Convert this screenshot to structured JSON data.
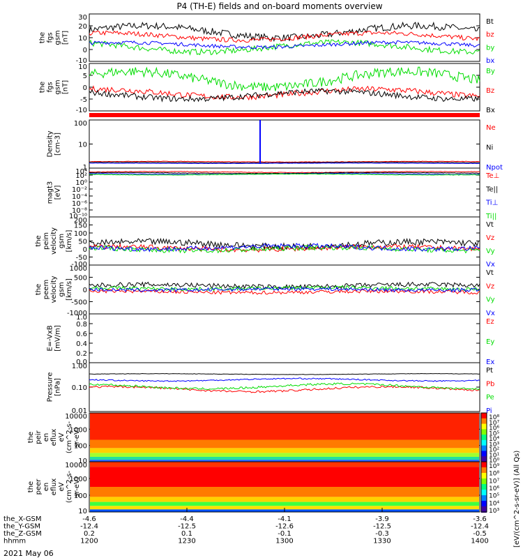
{
  "title": "P4 (TH-E) fields and on-board moments overview",
  "date_label": "2021 May 06",
  "colorbar_label": "[eV/(cm^2-s-sr-eV)] (All Qs)",
  "chart_data": [
    {
      "type": "line",
      "id": "fgs_gsm",
      "ylabel": [
        "the",
        "fgs",
        "gsm",
        "[nT]"
      ],
      "ylim": [
        -10,
        30
      ],
      "yticks": [
        "30",
        "20",
        "10",
        "0",
        "-10"
      ],
      "legend": [
        {
          "name": "Bt",
          "color": "#000000"
        },
        {
          "name": "bz",
          "color": "#ff0000"
        },
        {
          "name": "by",
          "color": "#00dd00"
        },
        {
          "name": "bx",
          "color": "#0000ff"
        }
      ]
    },
    {
      "type": "line",
      "id": "fgs_gsm_dsl",
      "ylabel": [
        "the",
        "fgs",
        "gsm",
        "[nT]"
      ],
      "ylim": [
        -12,
        12
      ],
      "yticks": [
        "10",
        "5",
        "0",
        "-5",
        "-10"
      ],
      "legend": [
        {
          "name": "By",
          "color": "#00dd00"
        },
        {
          "name": "Bz",
          "color": "#ff0000"
        },
        {
          "name": "Bx",
          "color": "#000000"
        }
      ]
    },
    {
      "type": "line",
      "id": "density",
      "ylabel": [
        "Density",
        "[cm-3]"
      ],
      "yscale": "log",
      "yticks": [
        "100",
        "10",
        "1"
      ],
      "legend": [
        {
          "name": "Ne",
          "color": "#ff0000"
        },
        {
          "name": "Ni",
          "color": "#000000"
        },
        {
          "name": "Npot",
          "color": "#0000ff"
        }
      ]
    },
    {
      "type": "line",
      "id": "magt3",
      "ylabel": [
        "magt3",
        "[eV]"
      ],
      "yscale": "log",
      "yticks": [
        "10⁴",
        "10²",
        "10⁰",
        "10⁻²",
        "10⁻⁴",
        "10⁻⁶",
        "10⁻⁸",
        "10⁻¹⁰"
      ],
      "legend": [
        {
          "name": "Te⊥",
          "color": "#ff0000"
        },
        {
          "name": "Te||",
          "color": "#000000"
        },
        {
          "name": "Ti⊥",
          "color": "#0000ff"
        },
        {
          "name": "Ti||",
          "color": "#00dd00"
        }
      ]
    },
    {
      "type": "line",
      "id": "peim_velocity",
      "ylabel": [
        "the",
        "peim",
        "velocity",
        "gsm",
        "[km/s]"
      ],
      "ylim": [
        -100,
        200
      ],
      "yticks": [
        "200",
        "150",
        "100",
        "50",
        "0",
        "-50",
        "-100"
      ],
      "legend": [
        {
          "name": "Vt",
          "color": "#000000"
        },
        {
          "name": "Vz",
          "color": "#ff0000"
        },
        {
          "name": "Vy",
          "color": "#00dd00"
        },
        {
          "name": "Vx",
          "color": "#0000ff"
        }
      ]
    },
    {
      "type": "line",
      "id": "peem_velocity",
      "ylabel": [
        "the",
        "peem",
        "velocity",
        "gsm",
        "[km/s]"
      ],
      "ylim": [
        -1000,
        1000
      ],
      "yticks": [
        "1000",
        "500",
        "0",
        "-500",
        "-1000"
      ],
      "legend": [
        {
          "name": "Vt",
          "color": "#000000"
        },
        {
          "name": "Vz",
          "color": "#ff0000"
        },
        {
          "name": "Vy",
          "color": "#00dd00"
        },
        {
          "name": "Vx",
          "color": "#0000ff"
        }
      ]
    },
    {
      "type": "line",
      "id": "efield",
      "ylabel": [
        "E=-VxB",
        "[mV/m]"
      ],
      "ylim": [
        0,
        1
      ],
      "yticks": [
        "1.0",
        "0.8",
        "0.6",
        "0.4",
        "0.2",
        "0.0"
      ],
      "legend": [
        {
          "name": "Ez",
          "color": "#ff0000"
        },
        {
          "name": "Ey",
          "color": "#00dd00"
        },
        {
          "name": "Ex",
          "color": "#0000ff"
        }
      ]
    },
    {
      "type": "line",
      "id": "pressure",
      "ylabel": [
        "Pressure",
        "[nPa]"
      ],
      "yscale": "log",
      "yticks": [
        "1.00",
        "0.10",
        "0.01"
      ],
      "legend": [
        {
          "name": "Pt",
          "color": "#000000"
        },
        {
          "name": "Pb",
          "color": "#ff0000"
        },
        {
          "name": "Pe",
          "color": "#00dd00"
        },
        {
          "name": "Pi",
          "color": "#0000ff"
        }
      ]
    },
    {
      "type": "heatmap",
      "id": "peir_spec",
      "ylabel": [
        "the",
        "peir",
        "en",
        "eflux",
        "eV",
        "(cm^2-s-",
        "sr-eV)"
      ],
      "yscale": "log",
      "yticks": [
        "10000",
        "1000",
        "100",
        "10"
      ],
      "colorbar_ticks": [
        "10⁸",
        "10⁷",
        "10⁶",
        "10⁵",
        "10⁴",
        "10³",
        "10²",
        "10¹",
        "10⁰"
      ]
    },
    {
      "type": "heatmap",
      "id": "peer_spec",
      "ylabel": [
        "the",
        "peer",
        "en",
        "eflux",
        "eV",
        "(cm^2-s-",
        "sr-eV)"
      ],
      "yscale": "log",
      "yticks": [
        "10000",
        "1000",
        "100",
        "10"
      ],
      "colorbar_ticks": [
        "10⁹",
        "10⁸",
        "10⁷",
        "10⁶",
        "10⁵",
        "10⁴",
        "10³"
      ]
    }
  ],
  "x_axis": {
    "rows": [
      {
        "label": "the_X-GSM",
        "values": [
          "-4.6",
          "-4.4",
          "-4.1",
          "-3.9",
          "-3.6"
        ]
      },
      {
        "label": "the_Y-GSM",
        "values": [
          "-12.4",
          "-12.5",
          "-12.6",
          "-12.5",
          "-12.4"
        ]
      },
      {
        "label": "the_Z-GSM",
        "values": [
          "0.2",
          "0.1",
          "-0.1",
          "-0.3",
          "-0.5"
        ]
      },
      {
        "label": "hhmm",
        "values": [
          "1200",
          "1230",
          "1300",
          "1330",
          "1400"
        ]
      }
    ]
  }
}
